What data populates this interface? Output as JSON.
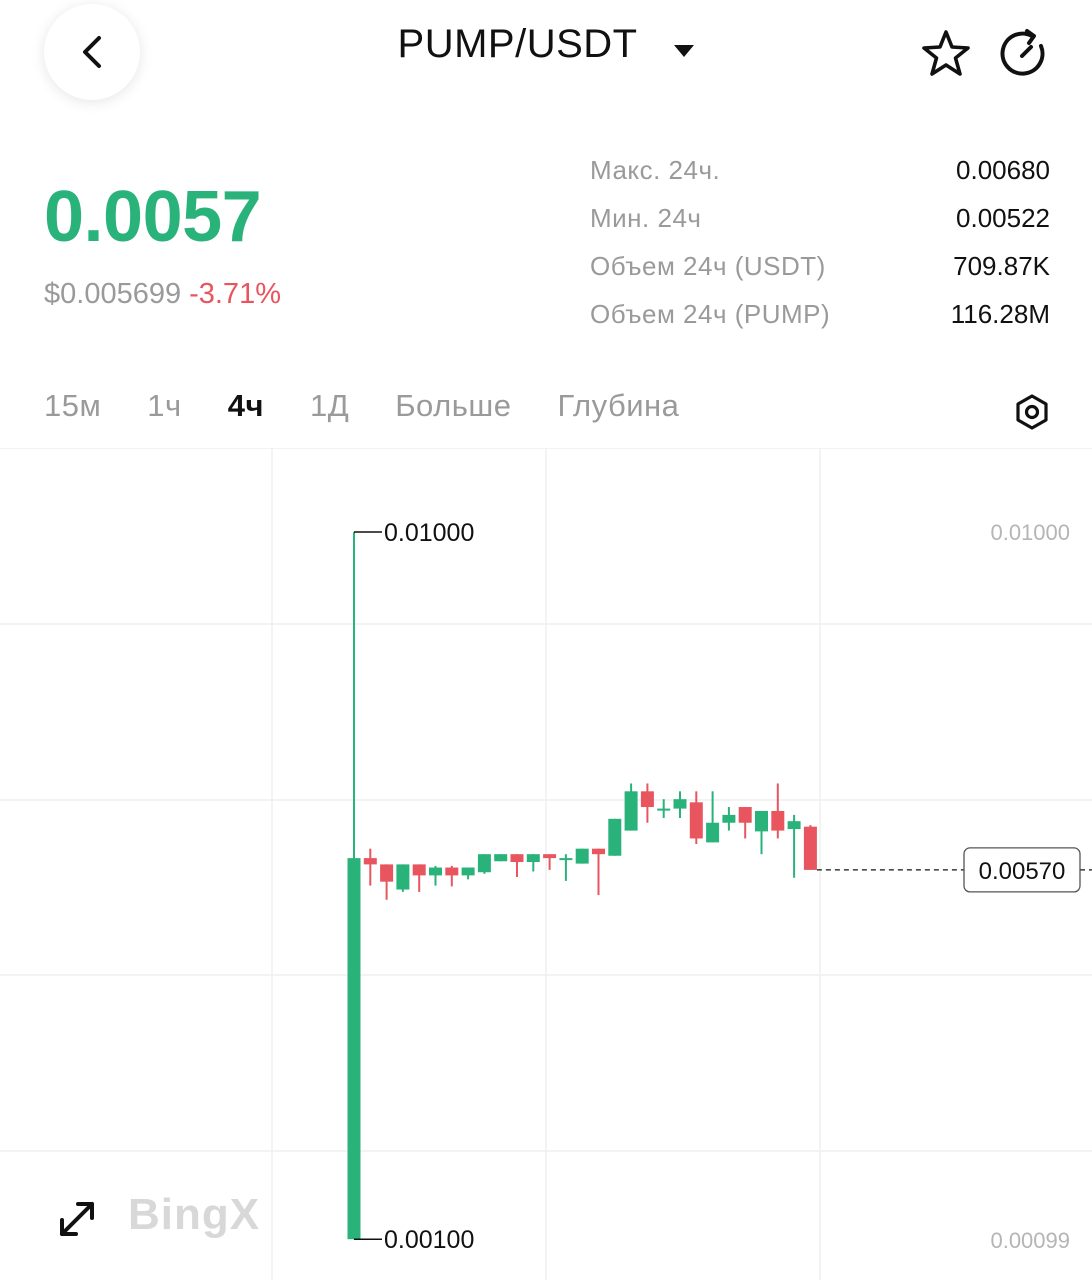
{
  "header": {
    "title": "PUMP/USDT",
    "back_icon": "chevron-left-icon",
    "dropdown_icon": "caret-down-icon",
    "favorite_icon": "star-icon",
    "refresh_icon": "refresh-icon"
  },
  "price": {
    "last": "0.0057",
    "usd": "$0.005699",
    "change": "-3.71%",
    "color_up": "#2ab27b",
    "color_down": "#e8555f"
  },
  "stats": [
    {
      "label": "Макс. 24ч.",
      "value": "0.00680"
    },
    {
      "label": "Мин. 24ч",
      "value": "0.00522"
    },
    {
      "label": "Объем 24ч (USDT)",
      "value": "709.87K"
    },
    {
      "label": "Объем 24ч (PUMP)",
      "value": "116.28M"
    }
  ],
  "tabs": [
    {
      "label": "15м",
      "active": false
    },
    {
      "label": "1ч",
      "active": false
    },
    {
      "label": "4ч",
      "active": true
    },
    {
      "label": "1Д",
      "active": false
    },
    {
      "label": "Больше",
      "active": false
    },
    {
      "label": "Глубина",
      "active": false
    }
  ],
  "settings_icon": "settings-icon",
  "expand_icon": "expand-icon",
  "logo_text": "BingX",
  "chart_data": {
    "type": "candlestick",
    "interval": "4ч",
    "axis_labels": {
      "top": "0.01000",
      "bottom": "0.00099"
    },
    "ylim": [
      0.00099,
      0.01
    ],
    "max_label": "0.01000",
    "min_label": "0.00100",
    "current_price_label": "0.00570",
    "current_price": 0.0057,
    "colors": {
      "up": "#2ab27b",
      "down": "#e8555f"
    },
    "candles": [
      {
        "o": 0.001,
        "h": 0.01,
        "l": 0.001,
        "c": 0.00585
      },
      {
        "o": 0.00585,
        "h": 0.00597,
        "l": 0.0055,
        "c": 0.00577
      },
      {
        "o": 0.00577,
        "h": 0.00577,
        "l": 0.00532,
        "c": 0.00555
      },
      {
        "o": 0.00545,
        "h": 0.00577,
        "l": 0.00542,
        "c": 0.00577
      },
      {
        "o": 0.00577,
        "h": 0.00577,
        "l": 0.00542,
        "c": 0.00563
      },
      {
        "o": 0.00563,
        "h": 0.00575,
        "l": 0.0055,
        "c": 0.00573
      },
      {
        "o": 0.00573,
        "h": 0.00575,
        "l": 0.00549,
        "c": 0.00563
      },
      {
        "o": 0.00563,
        "h": 0.00573,
        "l": 0.00558,
        "c": 0.00573
      },
      {
        "o": 0.00567,
        "h": 0.0059,
        "l": 0.00565,
        "c": 0.0059
      },
      {
        "o": 0.00581,
        "h": 0.0059,
        "l": 0.00581,
        "c": 0.0059
      },
      {
        "o": 0.0059,
        "h": 0.0059,
        "l": 0.00561,
        "c": 0.0058
      },
      {
        "o": 0.0058,
        "h": 0.0059,
        "l": 0.00568,
        "c": 0.0059
      },
      {
        "o": 0.0059,
        "h": 0.0059,
        "l": 0.0057,
        "c": 0.00585
      },
      {
        "o": 0.00585,
        "h": 0.0059,
        "l": 0.00556,
        "c": 0.00585
      },
      {
        "o": 0.00578,
        "h": 0.00597,
        "l": 0.00578,
        "c": 0.00597
      },
      {
        "o": 0.00597,
        "h": 0.00597,
        "l": 0.00538,
        "c": 0.0059
      },
      {
        "o": 0.00588,
        "h": 0.00635,
        "l": 0.00588,
        "c": 0.00635
      },
      {
        "o": 0.0062,
        "h": 0.0068,
        "l": 0.0062,
        "c": 0.0067
      },
      {
        "o": 0.0067,
        "h": 0.0068,
        "l": 0.0063,
        "c": 0.0065
      },
      {
        "o": 0.00648,
        "h": 0.0066,
        "l": 0.00636,
        "c": 0.00648
      },
      {
        "o": 0.00648,
        "h": 0.0067,
        "l": 0.00636,
        "c": 0.0066
      },
      {
        "o": 0.00656,
        "h": 0.0067,
        "l": 0.00603,
        "c": 0.0061
      },
      {
        "o": 0.00605,
        "h": 0.0067,
        "l": 0.00605,
        "c": 0.0063
      },
      {
        "o": 0.0063,
        "h": 0.0065,
        "l": 0.0062,
        "c": 0.0064
      },
      {
        "o": 0.0065,
        "h": 0.0065,
        "l": 0.0061,
        "c": 0.0063
      },
      {
        "o": 0.00619,
        "h": 0.00645,
        "l": 0.0059,
        "c": 0.00645
      },
      {
        "o": 0.00645,
        "h": 0.0068,
        "l": 0.0061,
        "c": 0.0062
      },
      {
        "o": 0.00622,
        "h": 0.0064,
        "l": 0.0056,
        "c": 0.00632
      },
      {
        "o": 0.00625,
        "h": 0.00627,
        "l": 0.0057,
        "c": 0.0057
      }
    ]
  }
}
